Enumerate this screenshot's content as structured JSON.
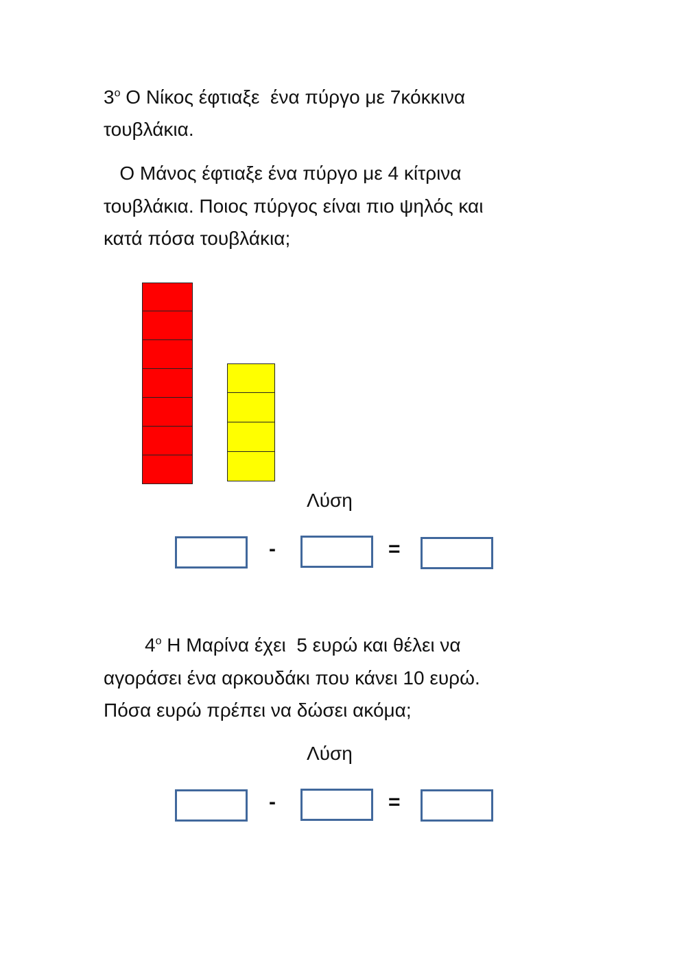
{
  "problem3": {
    "number": "3",
    "ordinal_suffix": "ο",
    "lines": [
      " Ο Νίκος έφτιαξε  ένα πύργο με 7κόκκινα",
      "τουβλάκια.",
      "   Ο Μάνος έφτιαξε ένα πύργο με 4 κίτρινα",
      "τουβλάκια. Ποιος πύργος είναι πιο ψηλός και",
      "κατά πόσα τουβλάκια;"
    ],
    "red_tower_blocks": 7,
    "yellow_tower_blocks": 4,
    "colors": {
      "red": "#ff0000",
      "yellow": "#ffff00",
      "box_border": "#41689c"
    },
    "solution_label": "Λύση",
    "minus": "-",
    "equals": "="
  },
  "problem4": {
    "number": "4",
    "ordinal_suffix": "ο",
    "lines": [
      " Η Μαρίνα έχει  5 ευρώ και θέλει να",
      "αγοράσει ένα αρκουδάκι που κάνει 10 ευρώ.",
      "Πόσα ευρώ πρέπει να δώσει ακόμα;"
    ],
    "solution_label": "Λύση",
    "minus": "-",
    "equals": "="
  }
}
